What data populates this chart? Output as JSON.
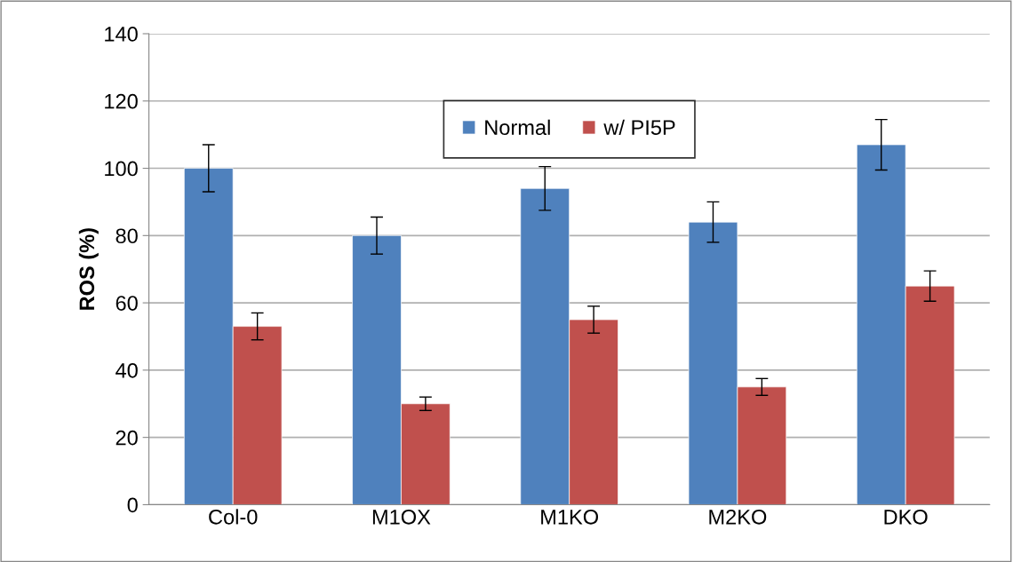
{
  "chart_data": {
    "type": "bar",
    "ylabel": "ROS (%)",
    "categories": [
      "Col-0",
      "M1OX",
      "M1KO",
      "M2KO",
      "DKO"
    ],
    "series": [
      {
        "name": "Normal",
        "color": "#4f81bd",
        "values": [
          100,
          80,
          94,
          84,
          107
        ],
        "errors": [
          7,
          5.5,
          6.5,
          6,
          7.5
        ]
      },
      {
        "name": "w/ PI5P",
        "color": "#c0504d",
        "values": [
          53,
          30,
          55,
          35,
          65
        ],
        "errors": [
          4,
          2,
          4,
          2.5,
          4.5
        ]
      }
    ],
    "ylim": [
      0,
      140
    ],
    "yticks": [
      0,
      20,
      40,
      60,
      80,
      100,
      120,
      140
    ],
    "grid": "y",
    "legend": "top"
  }
}
